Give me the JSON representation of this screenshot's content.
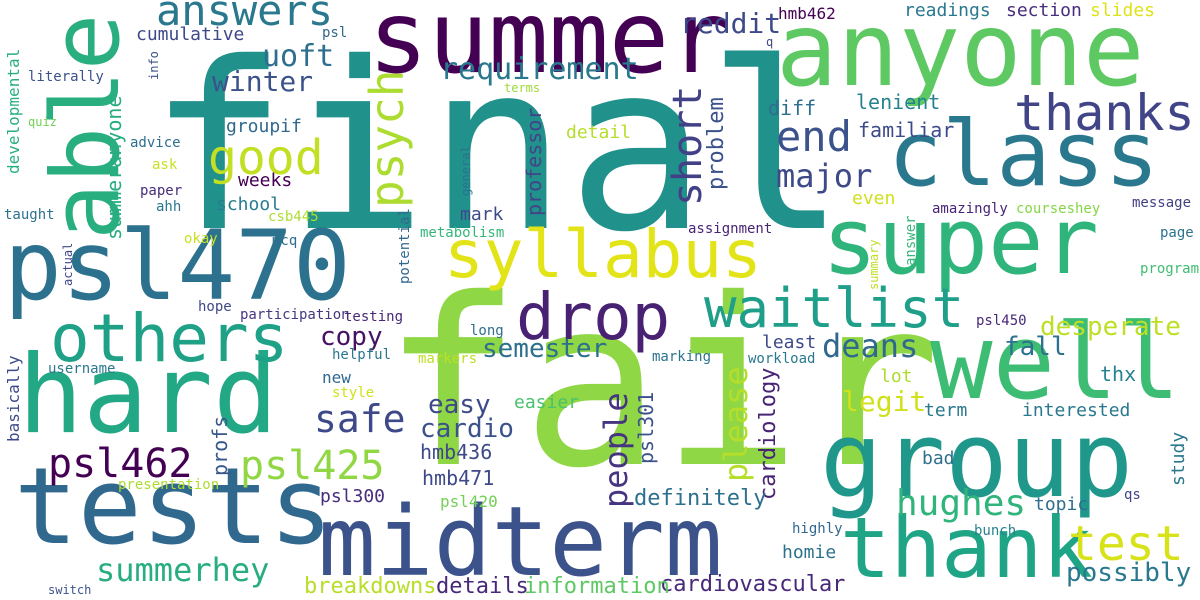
{
  "words": [
    {
      "text": "final",
      "color": "#21918c"
    },
    {
      "text": "fair",
      "color": "#8fd744"
    },
    {
      "text": "summer",
      "color": "#440154"
    },
    {
      "text": "anyone",
      "color": "#5ec962"
    },
    {
      "text": "able",
      "color": "#29af7f"
    },
    {
      "text": "class",
      "color": "#2a788e"
    },
    {
      "text": "super",
      "color": "#2fb47c"
    },
    {
      "text": "well",
      "color": "#3dbc74"
    },
    {
      "text": "group",
      "color": "#1f988b"
    },
    {
      "text": "hard",
      "color": "#22a884"
    },
    {
      "text": "tests",
      "color": "#31688e"
    },
    {
      "text": "midterm",
      "color": "#3b528b"
    },
    {
      "text": "thank",
      "color": "#20a486"
    },
    {
      "text": "psl470",
      "color": "#2c728e"
    },
    {
      "text": "syllabus",
      "color": "#e3e418"
    },
    {
      "text": "drop",
      "color": "#482173"
    },
    {
      "text": "others",
      "color": "#1fa187"
    },
    {
      "text": "waitlist",
      "color": "#1f9e89"
    },
    {
      "text": "thanks",
      "color": "#414487"
    },
    {
      "text": "good",
      "color": "#c2df23"
    },
    {
      "text": "psych",
      "color": "#addc30"
    },
    {
      "text": "end",
      "color": "#3b528b"
    },
    {
      "text": "short",
      "color": "#424086"
    },
    {
      "text": "answers",
      "color": "#2a788e"
    },
    {
      "text": "requirement",
      "color": "#2a788e"
    },
    {
      "text": "test",
      "color": "#d8e219"
    },
    {
      "text": "psl462",
      "color": "#440154"
    },
    {
      "text": "psl425",
      "color": "#90d743"
    },
    {
      "text": "summerhey",
      "color": "#27ad81"
    },
    {
      "text": "safe",
      "color": "#3e4989"
    },
    {
      "text": "deans",
      "color": "#31688e"
    },
    {
      "text": "hughes",
      "color": "#2fb47c"
    },
    {
      "text": "people",
      "color": "#463480"
    },
    {
      "text": "please",
      "color": "#b5de2b"
    },
    {
      "text": "major",
      "color": "#3e4989"
    },
    {
      "text": "desperate",
      "color": "#bddf26"
    },
    {
      "text": "reddit",
      "color": "#3e4989"
    },
    {
      "text": "winter",
      "color": "#3b528b"
    },
    {
      "text": "uoft",
      "color": "#2e6e8e"
    },
    {
      "text": "copy",
      "color": "#471164"
    },
    {
      "text": "semester",
      "color": "#2d708e"
    },
    {
      "text": "easy",
      "color": "#3e4989"
    },
    {
      "text": "cardio",
      "color": "#3b528b"
    },
    {
      "text": "legit",
      "color": "#d0e11c"
    },
    {
      "text": "fall",
      "color": "#2c728e"
    },
    {
      "text": "possibly",
      "color": "#2a788e"
    },
    {
      "text": "problem",
      "color": "#3b528b"
    },
    {
      "text": "cardiology",
      "color": "#482475"
    },
    {
      "text": "definitely",
      "color": "#2d708e"
    },
    {
      "text": "cardiovascular",
      "color": "#482878"
    },
    {
      "text": "information",
      "color": "#5ec962"
    },
    {
      "text": "details",
      "color": "#482878"
    },
    {
      "text": "breakdowns",
      "color": "#b8de29"
    },
    {
      "text": "professor",
      "color": "#414487"
    },
    {
      "text": "psl301",
      "color": "#3b528b"
    },
    {
      "text": "hmb436",
      "color": "#3e4989"
    },
    {
      "text": "hmb471",
      "color": "#3e4989"
    },
    {
      "text": "psl300",
      "color": "#472d7b"
    },
    {
      "text": "psl420",
      "color": "#73d056"
    },
    {
      "text": "psl450",
      "color": "#482878"
    },
    {
      "text": "psl",
      "color": "#31688e"
    },
    {
      "text": "thx",
      "color": "#26828e"
    },
    {
      "text": "lenient",
      "color": "#26828e"
    },
    {
      "text": "familiar",
      "color": "#3e4989"
    },
    {
      "text": "diff",
      "color": "#2e6e8e"
    },
    {
      "text": "readings",
      "color": "#2a788e"
    },
    {
      "text": "section",
      "color": "#472d7b"
    },
    {
      "text": "slides",
      "color": "#dde318"
    },
    {
      "text": "hmb462",
      "color": "#440154"
    },
    {
      "text": "q",
      "color": "#3e4989"
    },
    {
      "text": "cumulative",
      "color": "#3e4989"
    },
    {
      "text": "groupif",
      "color": "#31688e"
    },
    {
      "text": "weeks",
      "color": "#440154"
    },
    {
      "text": "school",
      "color": "#287c8e"
    },
    {
      "text": "mark",
      "color": "#3e4989"
    },
    {
      "text": "detail",
      "color": "#b5de2b"
    },
    {
      "text": "even",
      "color": "#d0e11c"
    },
    {
      "text": "assignment",
      "color": "#482475"
    },
    {
      "text": "amazingly",
      "color": "#482475"
    },
    {
      "text": "courseshey",
      "color": "#86d549"
    },
    {
      "text": "message",
      "color": "#424086"
    },
    {
      "text": "page",
      "color": "#2c728e"
    },
    {
      "text": "program",
      "color": "#40bd72"
    },
    {
      "text": "summary",
      "color": "#c0df25"
    },
    {
      "text": "answer",
      "color": "#35b779"
    },
    {
      "text": "csb445",
      "color": "#addc30"
    },
    {
      "text": "mcq",
      "color": "#2e6e8e"
    },
    {
      "text": "okay",
      "color": "#c8e020"
    },
    {
      "text": "metabolism",
      "color": "#35b779"
    },
    {
      "text": "potential",
      "color": "#31688e"
    },
    {
      "text": "general",
      "color": "#2c728e"
    },
    {
      "text": "ahh",
      "color": "#2a788e"
    },
    {
      "text": "paper",
      "color": "#472d7b"
    },
    {
      "text": "ask",
      "color": "#c8e020"
    },
    {
      "text": "advice",
      "color": "#2e6e8e"
    },
    {
      "text": "quiz",
      "color": "#73d056"
    },
    {
      "text": "info",
      "color": "#3b528b"
    },
    {
      "text": "terms",
      "color": "#a0da39"
    },
    {
      "text": "literally",
      "color": "#3b528b"
    },
    {
      "text": "developmental",
      "color": "#29af7f"
    },
    {
      "text": "summeranyone",
      "color": "#27ad81"
    },
    {
      "text": "taught",
      "color": "#2c728e"
    },
    {
      "text": "actual",
      "color": "#3e4989"
    },
    {
      "text": "hope",
      "color": "#3e4989"
    },
    {
      "text": "participation",
      "color": "#453781"
    },
    {
      "text": "testing",
      "color": "#482878"
    },
    {
      "text": "long",
      "color": "#2e6e8e"
    },
    {
      "text": "helpful",
      "color": "#2a788e"
    },
    {
      "text": "markers",
      "color": "#bddf26"
    },
    {
      "text": "marking",
      "color": "#2c728e"
    },
    {
      "text": "least",
      "color": "#3e4989"
    },
    {
      "text": "workload",
      "color": "#2a788e"
    },
    {
      "text": "username",
      "color": "#2a788e"
    },
    {
      "text": "style",
      "color": "#d0e11c"
    },
    {
      "text": "basically",
      "color": "#3e4989"
    },
    {
      "text": "new",
      "color": "#31688e"
    },
    {
      "text": "easier",
      "color": "#4ac16d"
    },
    {
      "text": "profs",
      "color": "#38588c"
    },
    {
      "text": "presentation",
      "color": "#addc30"
    },
    {
      "text": "lot",
      "color": "#addc30"
    },
    {
      "text": "term",
      "color": "#2a788e"
    },
    {
      "text": "interested",
      "color": "#2a788e"
    },
    {
      "text": "bad",
      "color": "#2e6e8e"
    },
    {
      "text": "topic",
      "color": "#2e6e8e"
    },
    {
      "text": "study",
      "color": "#2a788e"
    },
    {
      "text": "qs",
      "color": "#414487"
    },
    {
      "text": "highly",
      "color": "#31688e"
    },
    {
      "text": "bunch",
      "color": "#26828e"
    },
    {
      "text": "homie",
      "color": "#2c728e"
    },
    {
      "text": "switch",
      "color": "#3b528b"
    }
  ]
}
